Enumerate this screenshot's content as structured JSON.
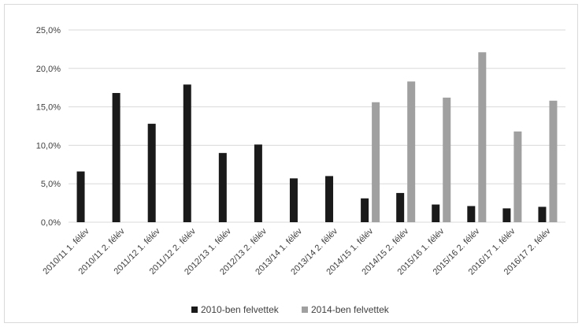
{
  "chart_data": {
    "type": "bar",
    "categories": [
      "2010/11 1. félév",
      "2010/11 2. félév",
      "2011/12 1. félév",
      "2011/12 2. félév",
      "2012/13 1. félév",
      "2012/13 2. félév",
      "2013/14 1. félév",
      "2013/14 2. félév",
      "2014/15 1. félév",
      "2014/15 2. félév",
      "2015/16 1. félév",
      "2015/16 2. félév",
      "2016/17 1. félév",
      "2016/17 2. félév"
    ],
    "series": [
      {
        "name": "2010-ben felvettek",
        "color": "#1a1a1a",
        "values": [
          6.6,
          16.8,
          12.8,
          17.9,
          9.0,
          10.1,
          5.7,
          6.0,
          3.1,
          3.8,
          2.3,
          2.1,
          1.8,
          2.0
        ]
      },
      {
        "name": "2014-ben felvettek",
        "color": "#a0a0a0",
        "values": [
          null,
          null,
          null,
          null,
          null,
          null,
          null,
          null,
          15.6,
          18.3,
          16.2,
          22.1,
          11.8,
          15.8
        ]
      }
    ],
    "ylim": [
      0,
      25
    ],
    "yticks": [
      0,
      5,
      10,
      15,
      20,
      25
    ],
    "ytick_labels": [
      "0,0%",
      "5,0%",
      "10,0%",
      "15,0%",
      "20,0%",
      "25,0%"
    ],
    "grid": true,
    "legend_position": "bottom",
    "title": "",
    "xlabel": "",
    "ylabel": ""
  }
}
